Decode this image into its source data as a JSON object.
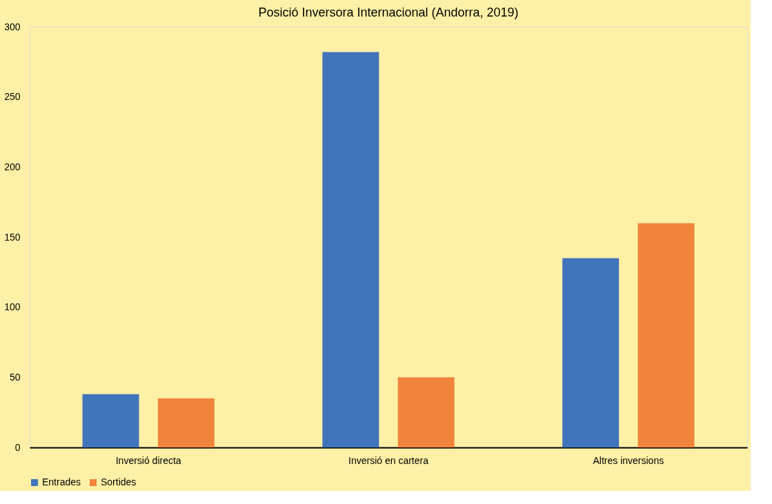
{
  "chart_data": {
    "type": "bar",
    "title": "Posició Inversora Internacional (Andorra, 2019)",
    "categories": [
      "Inversió directa",
      "Inversió en cartera",
      "Altres inversions"
    ],
    "series": [
      {
        "name": "Entrades",
        "color": "#4174ba",
        "values": [
          38,
          282,
          135
        ]
      },
      {
        "name": "Sortides",
        "color": "#f0843c",
        "values": [
          35,
          50,
          160
        ]
      }
    ],
    "ylim": [
      0,
      300
    ],
    "yticks": [
      0,
      50,
      100,
      150,
      200,
      250,
      300
    ],
    "grid": false,
    "legend": "bottom"
  }
}
